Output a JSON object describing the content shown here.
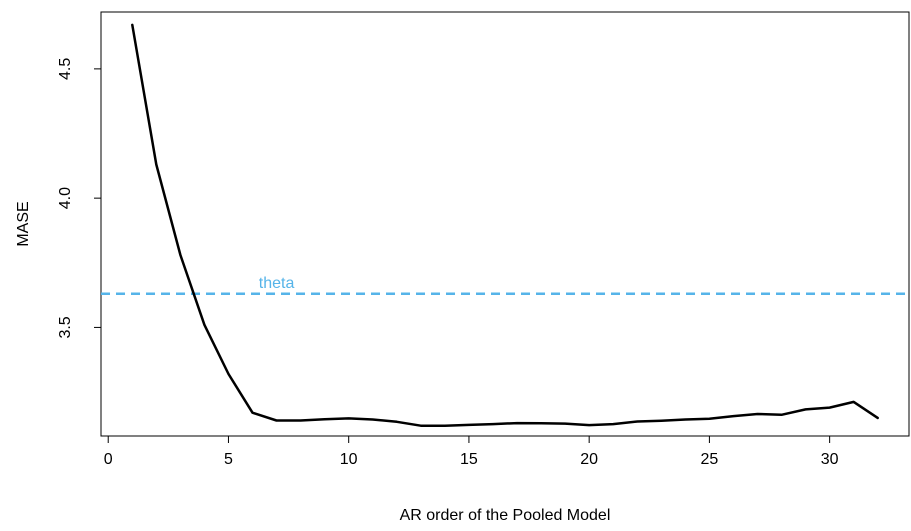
{
  "chart_data": {
    "type": "line",
    "title": "",
    "xlabel": "AR order of the Pooled Model",
    "ylabel": "MASE",
    "xlim": [
      -0.3,
      33.3
    ],
    "ylim": [
      3.08,
      4.72
    ],
    "xticks": [
      0,
      5,
      10,
      15,
      20,
      25,
      30
    ],
    "yticks": [
      3.5,
      4.0,
      4.5
    ],
    "ytick_labels": [
      "3.5",
      "4.0",
      "4.5"
    ],
    "grid": false,
    "series": [
      {
        "color": "#000000",
        "x": [
          1,
          2,
          3,
          4,
          5,
          6,
          7,
          8,
          9,
          10,
          11,
          12,
          13,
          14,
          15,
          16,
          17,
          18,
          19,
          20,
          21,
          22,
          23,
          24,
          25,
          26,
          27,
          28,
          29,
          30,
          31,
          32
        ],
        "values": [
          4.67,
          4.13,
          3.78,
          3.51,
          3.32,
          3.17,
          3.14,
          3.14,
          3.145,
          3.148,
          3.144,
          3.135,
          3.12,
          3.12,
          3.123,
          3.126,
          3.13,
          3.129,
          3.128,
          3.122,
          3.126,
          3.136,
          3.139,
          3.144,
          3.147,
          3.157,
          3.165,
          3.162,
          3.183,
          3.19,
          3.212,
          3.15
        ]
      }
    ],
    "reference_lines": [
      {
        "y": 3.63,
        "label": "theta",
        "color": "#56B4E9",
        "style": "dashed"
      }
    ]
  }
}
